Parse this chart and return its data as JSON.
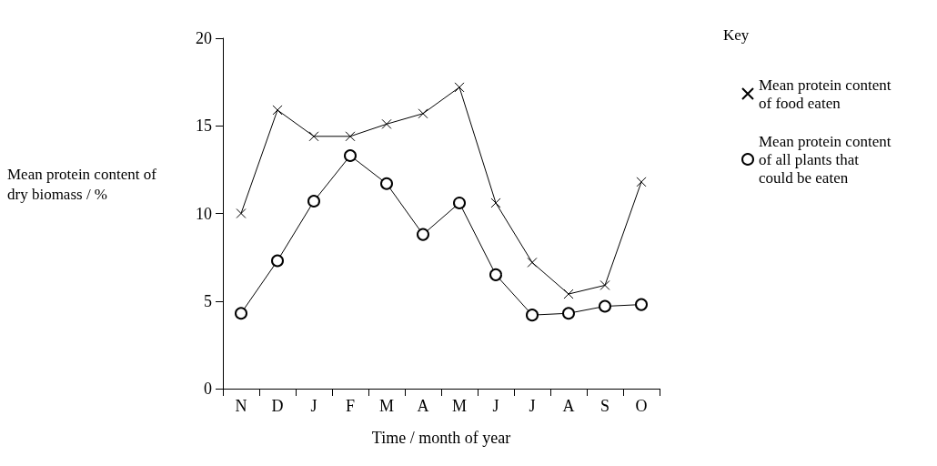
{
  "chart_data": {
    "type": "line",
    "xlabel": "Time / month of year",
    "ylabel": "Mean protein content of dry biomass / %",
    "legend_title": "Key",
    "categories": [
      "N",
      "D",
      "J",
      "F",
      "M",
      "A",
      "M",
      "J",
      "J",
      "A",
      "S",
      "O"
    ],
    "series": [
      {
        "name": "Mean protein content of food eaten",
        "color": "#000000",
        "marker": "cross",
        "values": [
          10,
          15.9,
          14.4,
          14.4,
          15.1,
          15.7,
          17.2,
          10.6,
          7.2,
          5.4,
          5.9,
          11.8
        ]
      },
      {
        "name": "Mean protein content of all plants that could be eaten",
        "color": "#000000",
        "marker": "circle",
        "values": [
          4.3,
          7.3,
          10.7,
          13.3,
          11.7,
          8.8,
          10.6,
          6.5,
          4.2,
          4.3,
          4.7,
          4.8
        ]
      }
    ],
    "ylim": [
      0,
      20
    ],
    "yticks": [
      0,
      5,
      10,
      15,
      20
    ],
    "grid": false,
    "legend": "right",
    "line_style": "solid"
  }
}
